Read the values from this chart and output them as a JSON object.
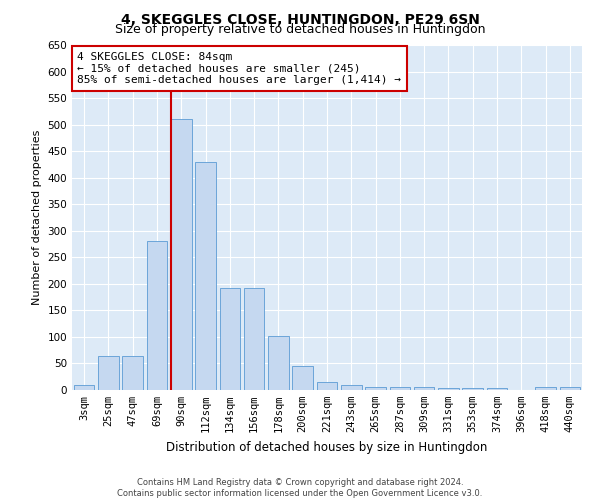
{
  "title": "4, SKEGGLES CLOSE, HUNTINGDON, PE29 6SN",
  "subtitle": "Size of property relative to detached houses in Huntingdon",
  "xlabel": "Distribution of detached houses by size in Huntingdon",
  "ylabel": "Number of detached properties",
  "categories": [
    "3sqm",
    "25sqm",
    "47sqm",
    "69sqm",
    "90sqm",
    "112sqm",
    "134sqm",
    "156sqm",
    "178sqm",
    "200sqm",
    "221sqm",
    "243sqm",
    "265sqm",
    "287sqm",
    "309sqm",
    "331sqm",
    "353sqm",
    "374sqm",
    "396sqm",
    "418sqm",
    "440sqm"
  ],
  "values": [
    10,
    65,
    65,
    280,
    510,
    430,
    192,
    192,
    102,
    46,
    15,
    10,
    5,
    5,
    5,
    3,
    3,
    3,
    0,
    5,
    5
  ],
  "bar_color": "#c5d8f0",
  "bar_edgecolor": "#5b9bd5",
  "vline_color": "#cc0000",
  "vline_bar_index": 4,
  "annotation_text": "4 SKEGGLES CLOSE: 84sqm\n← 15% of detached houses are smaller (245)\n85% of semi-detached houses are larger (1,414) →",
  "annotation_box_edgecolor": "#cc0000",
  "ylim": [
    0,
    650
  ],
  "yticks": [
    0,
    50,
    100,
    150,
    200,
    250,
    300,
    350,
    400,
    450,
    500,
    550,
    600,
    650
  ],
  "background_color": "#ddeaf7",
  "grid_color": "#ffffff",
  "footer_text": "Contains HM Land Registry data © Crown copyright and database right 2024.\nContains public sector information licensed under the Open Government Licence v3.0.",
  "title_fontsize": 10,
  "subtitle_fontsize": 9,
  "xlabel_fontsize": 8.5,
  "ylabel_fontsize": 8,
  "tick_fontsize": 7.5,
  "annotation_fontsize": 8,
  "footer_fontsize": 6
}
